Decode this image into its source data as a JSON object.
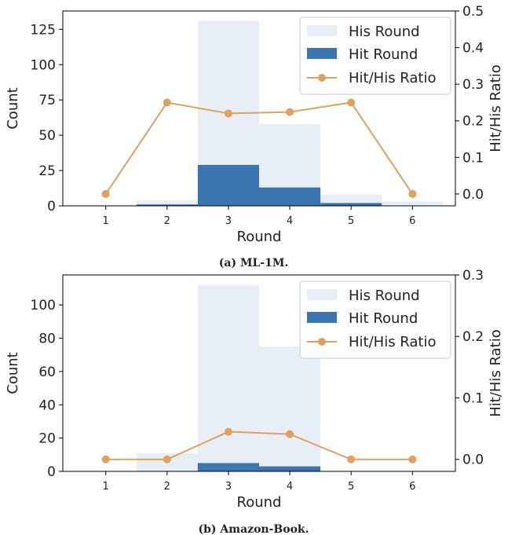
{
  "colors": {
    "his": "#e8eef6",
    "hit": "#3b75b1",
    "ratio": "#e0a060"
  },
  "chart_data": [
    {
      "type": "bar",
      "caption": "(a) ML-1M.",
      "categories": [
        "1",
        "2",
        "3",
        "4",
        "5",
        "6"
      ],
      "xlabel": "Round",
      "ylabel": "Count",
      "y2label": "Hit/His Ratio",
      "ylim": [
        0,
        138
      ],
      "y2lim": [
        -0.0324,
        0.5
      ],
      "yticks": [
        "0",
        "25",
        "50",
        "75",
        "100",
        "125"
      ],
      "y2ticks": [
        "0.0",
        "0.1",
        "0.2",
        "0.3",
        "0.4",
        "0.5"
      ],
      "series": [
        {
          "name": "His Round",
          "values": [
            0,
            4,
            131,
            58,
            8,
            3
          ]
        },
        {
          "name": "Hit Round",
          "values": [
            0,
            1,
            29,
            13,
            2,
            0
          ]
        },
        {
          "name": "Hit/His Ratio",
          "values": [
            0.0,
            0.25,
            0.22,
            0.224,
            0.25,
            0.0
          ]
        }
      ],
      "legend": [
        "His Round",
        "Hit Round",
        "Hit/His Ratio"
      ],
      "legend_position": "top-right",
      "grid": false
    },
    {
      "type": "bar",
      "caption": "(b) Amazon-Book.",
      "categories": [
        "1",
        "2",
        "3",
        "4",
        "5",
        "6"
      ],
      "xlabel": "Round",
      "ylabel": "Count",
      "y2label": "Hit/His Ratio",
      "ylim": [
        0,
        118
      ],
      "y2lim": [
        -0.0195,
        0.3
      ],
      "yticks": [
        "0",
        "20",
        "40",
        "60",
        "80",
        "100"
      ],
      "y2ticks": [
        "0.0",
        "0.1",
        "0.2",
        "0.3"
      ],
      "series": [
        {
          "name": "His Round",
          "values": [
            0,
            11,
            112,
            75,
            0,
            0
          ]
        },
        {
          "name": "Hit Round",
          "values": [
            0,
            0,
            5,
            3,
            0,
            0
          ]
        },
        {
          "name": "Hit/His Ratio",
          "values": [
            0.0,
            0.0,
            0.045,
            0.041,
            0.0,
            0.0
          ]
        }
      ],
      "legend": [
        "His Round",
        "Hit Round",
        "Hit/His Ratio"
      ],
      "legend_position": "top-right",
      "grid": false
    }
  ]
}
